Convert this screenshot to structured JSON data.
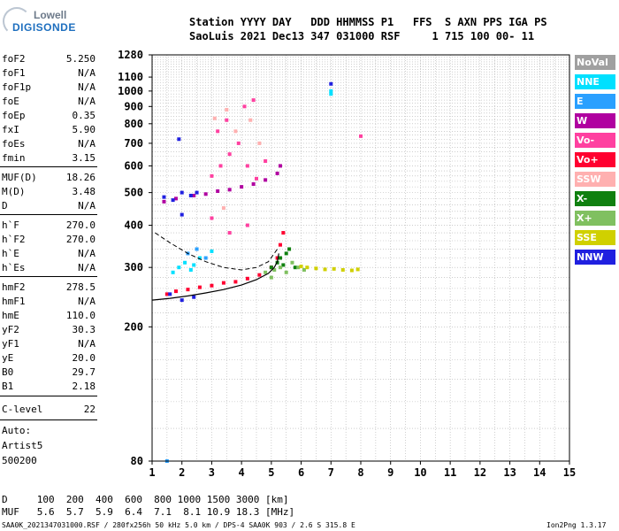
{
  "logo": {
    "line1": "Lowell",
    "line2": "DIGISONDE"
  },
  "header": {
    "line1": "Station YYYY DAY   DDD HHMMSS P1   FFS  S AXN PPS IGA PS",
    "line2": "SaoLuis 2021 Dec13 347 031000 RSF     1 715 100 00- 11"
  },
  "params": [
    {
      "name": "foF2",
      "value": "5.250"
    },
    {
      "name": "foF1",
      "value": "N/A"
    },
    {
      "name": "foF1p",
      "value": "N/A"
    },
    {
      "name": "foE",
      "value": "N/A"
    },
    {
      "name": "foEp",
      "value": "0.35"
    },
    {
      "name": "fxI",
      "value": "5.90"
    },
    {
      "name": "foEs",
      "value": "N/A"
    },
    {
      "name": "fmin",
      "value": "3.15"
    },
    {
      "name": "MUF(D)",
      "value": "18.26"
    },
    {
      "name": "M(D)",
      "value": "3.48"
    },
    {
      "name": "D",
      "value": "N/A"
    },
    {
      "name": "h`F",
      "value": "270.0"
    },
    {
      "name": "h`F2",
      "value": "270.0"
    },
    {
      "name": "h`E",
      "value": "N/A"
    },
    {
      "name": "h`Es",
      "value": "N/A"
    },
    {
      "name": "hmF2",
      "value": "278.5"
    },
    {
      "name": "hmF1",
      "value": "N/A"
    },
    {
      "name": "hmE",
      "value": "110.0"
    },
    {
      "name": "yF2",
      "value": "30.3"
    },
    {
      "name": "yF1",
      "value": "N/A"
    },
    {
      "name": "yE",
      "value": "20.0"
    },
    {
      "name": "B0",
      "value": "29.7"
    },
    {
      "name": "B1",
      "value": "2.18"
    },
    {
      "name": "C-level",
      "value": "22"
    }
  ],
  "auto": {
    "line1": "Auto:",
    "line2": "Artist5",
    "line3": "500200"
  },
  "legend": [
    {
      "label": "NoVal",
      "color": "#a0a0a0"
    },
    {
      "label": "NNE",
      "color": "#00e0ff"
    },
    {
      "label": "E",
      "color": "#2aa0ff"
    },
    {
      "label": "W",
      "color": "#b000a0"
    },
    {
      "label": "Vo-",
      "color": "#ff40a0"
    },
    {
      "label": "Vo+",
      "color": "#ff0030"
    },
    {
      "label": "SSW",
      "color": "#ffb0b0"
    },
    {
      "label": "X-",
      "color": "#108010"
    },
    {
      "label": "X+",
      "color": "#80c060"
    },
    {
      "label": "SSE",
      "color": "#d0d000"
    },
    {
      "label": "NNW",
      "color": "#2020e0"
    }
  ],
  "chart_data": {
    "type": "scatter",
    "xlim": [
      1,
      15
    ],
    "ylim": [
      80,
      1280
    ],
    "x_ticks": [
      "1",
      "2",
      "3",
      "4",
      "5",
      "6",
      "7",
      "8",
      "9",
      "10",
      "11",
      "12",
      "13",
      "14",
      "15"
    ],
    "y_ticks": [
      "80",
      "200",
      "300",
      "400",
      "500",
      "600",
      "700",
      "800",
      "900",
      "1000",
      "1100",
      "1280"
    ],
    "grid": true,
    "y_scale": "log",
    "series": [
      {
        "color": "#ff0030",
        "points": [
          [
            1.5,
            250
          ],
          [
            1.8,
            255
          ],
          [
            2.2,
            258
          ],
          [
            2.6,
            262
          ],
          [
            3.0,
            265
          ],
          [
            3.4,
            270
          ],
          [
            3.8,
            272
          ],
          [
            4.2,
            278
          ],
          [
            4.6,
            285
          ],
          [
            5.0,
            300
          ],
          [
            5.2,
            320
          ],
          [
            5.3,
            350
          ],
          [
            5.4,
            380
          ]
        ]
      },
      {
        "color": "#b000a0",
        "points": [
          [
            1.4,
            470
          ],
          [
            1.8,
            480
          ],
          [
            2.4,
            490
          ],
          [
            2.8,
            495
          ],
          [
            3.2,
            505
          ],
          [
            3.6,
            510
          ],
          [
            4.0,
            520
          ],
          [
            4.4,
            530
          ],
          [
            4.8,
            545
          ],
          [
            5.2,
            570
          ],
          [
            5.3,
            600
          ]
        ]
      },
      {
        "color": "#2020e0",
        "points": [
          [
            1.4,
            485
          ],
          [
            1.7,
            475
          ],
          [
            2.0,
            500
          ],
          [
            2.3,
            490
          ],
          [
            2.0,
            430
          ],
          [
            1.9,
            720
          ],
          [
            7.0,
            1050
          ],
          [
            2.5,
            500
          ],
          [
            1.6,
            250
          ],
          [
            2.0,
            240
          ],
          [
            2.4,
            245
          ]
        ]
      },
      {
        "color": "#00e0ff",
        "points": [
          [
            1.9,
            300
          ],
          [
            2.1,
            310
          ],
          [
            2.3,
            295
          ],
          [
            2.6,
            320
          ],
          [
            3.0,
            335
          ],
          [
            7.0,
            1000
          ],
          [
            7.0,
            980
          ],
          [
            1.7,
            290
          ],
          [
            2.4,
            305
          ]
        ]
      },
      {
        "color": "#108010",
        "points": [
          [
            5.0,
            300
          ],
          [
            5.2,
            310
          ],
          [
            5.3,
            320
          ],
          [
            5.5,
            330
          ],
          [
            5.6,
            340
          ],
          [
            5.4,
            305
          ],
          [
            5.8,
            300
          ]
        ]
      },
      {
        "color": "#80c060",
        "points": [
          [
            5.1,
            295
          ],
          [
            5.3,
            300
          ],
          [
            5.5,
            290
          ],
          [
            5.7,
            310
          ],
          [
            5.9,
            300
          ],
          [
            6.1,
            295
          ],
          [
            5.0,
            280
          ],
          [
            4.8,
            290
          ]
        ]
      },
      {
        "color": "#d0d000",
        "points": [
          [
            6.2,
            300
          ],
          [
            6.5,
            298
          ],
          [
            6.8,
            296
          ],
          [
            7.1,
            297
          ],
          [
            7.4,
            295
          ],
          [
            7.7,
            294
          ],
          [
            7.9,
            296
          ],
          [
            6.0,
            302
          ]
        ]
      },
      {
        "color": "#ff40a0",
        "points": [
          [
            3.0,
            560
          ],
          [
            3.3,
            600
          ],
          [
            3.6,
            650
          ],
          [
            3.9,
            700
          ],
          [
            4.2,
            600
          ],
          [
            4.5,
            550
          ],
          [
            4.8,
            620
          ],
          [
            3.2,
            760
          ],
          [
            3.5,
            820
          ],
          [
            4.1,
            900
          ],
          [
            4.4,
            940
          ],
          [
            8.0,
            735
          ],
          [
            3.0,
            420
          ],
          [
            3.6,
            380
          ],
          [
            4.2,
            400
          ]
        ]
      },
      {
        "color": "#ffb0b0",
        "points": [
          [
            3.1,
            830
          ],
          [
            3.5,
            880
          ],
          [
            3.8,
            760
          ],
          [
            4.3,
            820
          ],
          [
            4.6,
            700
          ],
          [
            3.4,
            450
          ]
        ]
      },
      {
        "color": "#2aa0ff",
        "points": [
          [
            2.2,
            330
          ],
          [
            2.5,
            340
          ],
          [
            2.8,
            320
          ],
          [
            1.5,
            80
          ]
        ]
      }
    ],
    "profile_curve": [
      [
        1.0,
        240
      ],
      [
        1.6,
        243
      ],
      [
        2.2,
        247
      ],
      [
        2.8,
        252
      ],
      [
        3.4,
        258
      ],
      [
        4.0,
        266
      ],
      [
        4.5,
        276
      ],
      [
        4.9,
        288
      ],
      [
        5.1,
        300
      ],
      [
        5.2,
        312
      ],
      [
        5.25,
        330
      ]
    ],
    "dashed_curve": [
      [
        1.1,
        380
      ],
      [
        1.6,
        355
      ],
      [
        2.2,
        330
      ],
      [
        2.8,
        312
      ],
      [
        3.4,
        300
      ],
      [
        4.0,
        295
      ],
      [
        4.5,
        300
      ],
      [
        4.9,
        312
      ],
      [
        5.2,
        340
      ]
    ]
  },
  "footer": {
    "row1": "D     100  200  400  600  800 1000 1500 3000 [km]",
    "row2": "MUF   5.6  5.7  5.9  6.4  7.1  8.1 10.9 18.3 [MHz]",
    "file": "SAA0K_2021347031000.RSF / 280fx256h 50 kHz 5.0 km / DPS-4 SAA0K 903 / 2.6 S 315.8 E",
    "version": "Ion2Png 1.3.17"
  }
}
